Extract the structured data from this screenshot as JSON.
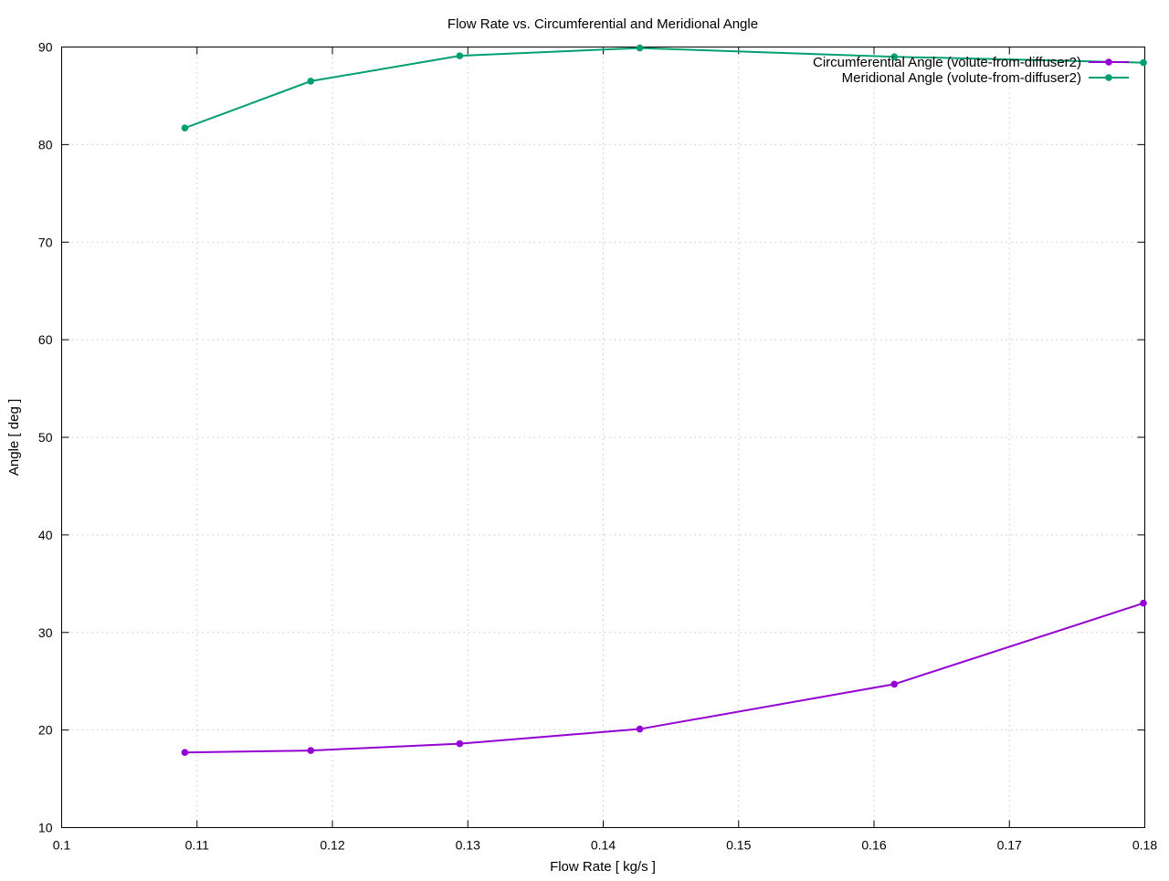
{
  "chart_data": {
    "type": "line",
    "title": "Flow Rate vs. Circumferential and Meridional Angle",
    "xlabel": "Flow Rate [ kg/s ]",
    "ylabel": "Angle [ deg ]",
    "xlim": [
      0.1,
      0.18
    ],
    "ylim": [
      10,
      90
    ],
    "xticks": [
      0.1,
      0.11,
      0.12,
      0.13,
      0.14,
      0.15,
      0.16,
      0.17,
      0.18
    ],
    "yticks": [
      10,
      20,
      30,
      40,
      50,
      60,
      70,
      80,
      90
    ],
    "xtick_labels": [
      "0.1",
      "0.11",
      "0.12",
      "0.13",
      "0.14",
      "0.15",
      "0.16",
      "0.17",
      "0.18"
    ],
    "ytick_labels": [
      "10",
      "20",
      "30",
      "40",
      "50",
      "60",
      "70",
      "80",
      "90"
    ],
    "grid": true,
    "legend_position": "top-right",
    "series": [
      {
        "name": "Circumferential Angle (volute-from-diffuser2)",
        "color": "#9400d3",
        "marker": "circle",
        "x": [
          0.1091,
          0.1184,
          0.1294,
          0.1427,
          0.1615,
          0.1799
        ],
        "y": [
          17.7,
          17.9,
          18.6,
          20.1,
          24.7,
          33.0
        ]
      },
      {
        "name": "Meridional Angle (volute-from-diffuser2)",
        "color": "#009e73",
        "marker": "circle",
        "x": [
          0.1091,
          0.1184,
          0.1294,
          0.1427,
          0.1615,
          0.1799
        ],
        "y": [
          81.7,
          86.5,
          89.1,
          89.9,
          89.0,
          88.4
        ]
      }
    ]
  }
}
